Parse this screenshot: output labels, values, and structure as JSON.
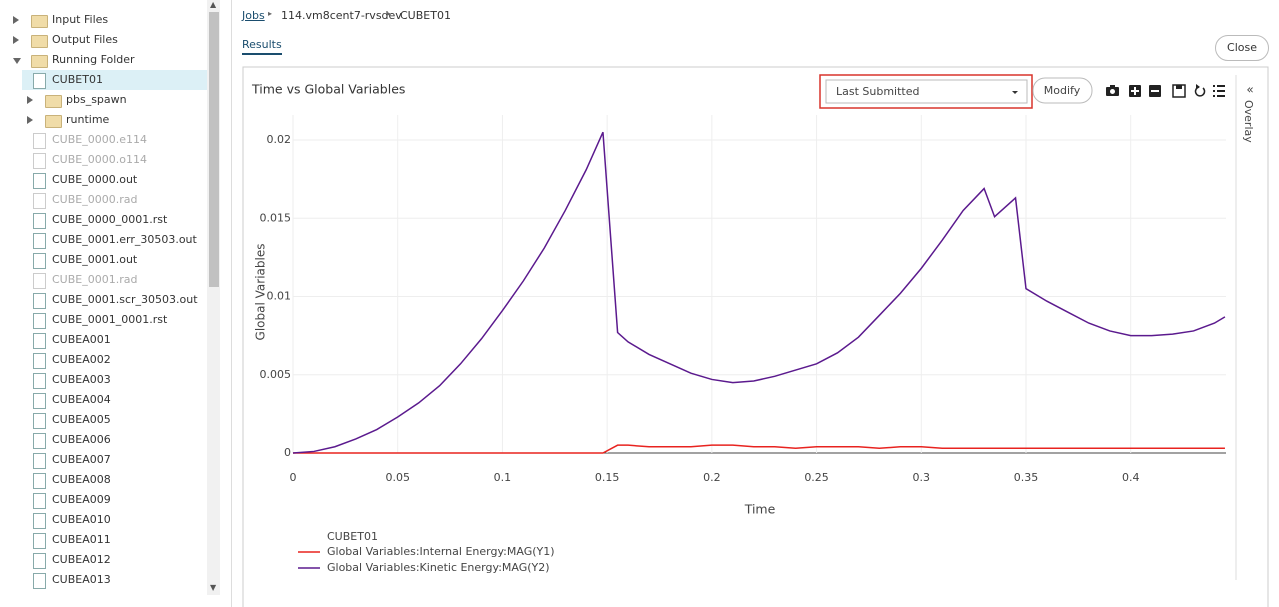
{
  "sidebar": {
    "items": [
      {
        "label": "Input Files",
        "icon": "folder",
        "depth": 0,
        "expander": "collapsed"
      },
      {
        "label": "Output Files",
        "icon": "folder",
        "depth": 0,
        "expander": "collapsed"
      },
      {
        "label": "Running Folder",
        "icon": "folder",
        "depth": 0,
        "expander": "expanded"
      },
      {
        "label": "CUBET01",
        "icon": "file",
        "depth": 1,
        "selected": true
      },
      {
        "label": "pbs_spawn",
        "icon": "folder",
        "depth": 1,
        "expander": "collapsed"
      },
      {
        "label": "runtime",
        "icon": "folder",
        "depth": 1,
        "expander": "collapsed"
      },
      {
        "label": "CUBE_0000.e114",
        "icon": "file",
        "depth": 1,
        "dimmed": true
      },
      {
        "label": "CUBE_0000.o114",
        "icon": "file",
        "depth": 1,
        "dimmed": true
      },
      {
        "label": "CUBE_0000.out",
        "icon": "file",
        "depth": 1
      },
      {
        "label": "CUBE_0000.rad",
        "icon": "file",
        "depth": 1,
        "dimmed": true
      },
      {
        "label": "CUBE_0000_0001.rst",
        "icon": "file",
        "depth": 1
      },
      {
        "label": "CUBE_0001.err_30503.out",
        "icon": "file",
        "depth": 1
      },
      {
        "label": "CUBE_0001.out",
        "icon": "file",
        "depth": 1
      },
      {
        "label": "CUBE_0001.rad",
        "icon": "file",
        "depth": 1,
        "dimmed": true
      },
      {
        "label": "CUBE_0001.scr_30503.out",
        "icon": "file",
        "depth": 1
      },
      {
        "label": "CUBE_0001_0001.rst",
        "icon": "file",
        "depth": 1
      },
      {
        "label": "CUBEA001",
        "icon": "file",
        "depth": 1
      },
      {
        "label": "CUBEA002",
        "icon": "file",
        "depth": 1
      },
      {
        "label": "CUBEA003",
        "icon": "file",
        "depth": 1
      },
      {
        "label": "CUBEA004",
        "icon": "file",
        "depth": 1
      },
      {
        "label": "CUBEA005",
        "icon": "file",
        "depth": 1
      },
      {
        "label": "CUBEA006",
        "icon": "file",
        "depth": 1
      },
      {
        "label": "CUBEA007",
        "icon": "file",
        "depth": 1
      },
      {
        "label": "CUBEA008",
        "icon": "file",
        "depth": 1
      },
      {
        "label": "CUBEA009",
        "icon": "file",
        "depth": 1
      },
      {
        "label": "CUBEA010",
        "icon": "file",
        "depth": 1
      },
      {
        "label": "CUBEA011",
        "icon": "file",
        "depth": 1
      },
      {
        "label": "CUBEA012",
        "icon": "file",
        "depth": 1
      },
      {
        "label": "CUBEA013",
        "icon": "file",
        "depth": 1
      }
    ]
  },
  "breadcrumb": [
    "Jobs",
    "114.vm8cent7-rvsdev",
    "CUBET01"
  ],
  "tab": "Results",
  "close_button": "Close",
  "toolbar": {
    "dropdown": "Last Submitted",
    "button": "Modify"
  },
  "side_panel": "Overlay",
  "chart_data": {
    "type": "line",
    "title": "Time vs Global Variables",
    "x_label": "Time",
    "y_label": "Global Variables",
    "legend_title": "CUBET01",
    "grid": true,
    "xlim": [
      0,
      0.4455
    ],
    "ylim": [
      0,
      0.0216
    ],
    "xticks": [
      0,
      0.05,
      0.1,
      0.15,
      0.2,
      0.25,
      0.3,
      0.35,
      0.4
    ],
    "yticks": [
      0,
      0.005,
      0.01,
      0.015,
      0.02
    ],
    "x": [
      0,
      0.01,
      0.02,
      0.03,
      0.04,
      0.05,
      0.06,
      0.07,
      0.08,
      0.09,
      0.1,
      0.11,
      0.12,
      0.13,
      0.14,
      0.148,
      0.155,
      0.16,
      0.17,
      0.18,
      0.19,
      0.2,
      0.21,
      0.22,
      0.23,
      0.24,
      0.25,
      0.26,
      0.27,
      0.28,
      0.29,
      0.3,
      0.31,
      0.32,
      0.33,
      0.335,
      0.345,
      0.35,
      0.36,
      0.37,
      0.38,
      0.39,
      0.4,
      0.41,
      0.42,
      0.43,
      0.44,
      0.445
    ],
    "series": [
      {
        "name": "Global Variables:Internal Energy:MAG(Y1)",
        "color": "#e8231f",
        "values": [
          0,
          0,
          0,
          0,
          0,
          0,
          0,
          0,
          0,
          0,
          0,
          0,
          0,
          0,
          0,
          0,
          0.0005,
          0.0005,
          0.0004,
          0.0004,
          0.0004,
          0.0005,
          0.0005,
          0.0004,
          0.0004,
          0.0003,
          0.0004,
          0.0004,
          0.0004,
          0.0003,
          0.0004,
          0.0004,
          0.0003,
          0.0003,
          0.0003,
          0.0003,
          0.0003,
          0.0003,
          0.0003,
          0.0003,
          0.0003,
          0.0003,
          0.0003,
          0.0003,
          0.0003,
          0.0003,
          0.0003,
          0.0003
        ]
      },
      {
        "name": "Global Variables:Kinetic Energy:MAG(Y2)",
        "color": "#5b1a8e",
        "values": [
          0,
          0.0001,
          0.0004,
          0.0009,
          0.0015,
          0.0023,
          0.0032,
          0.0043,
          0.0057,
          0.0073,
          0.0091,
          0.011,
          0.0131,
          0.0155,
          0.0181,
          0.0205,
          0.0077,
          0.0071,
          0.0063,
          0.0057,
          0.0051,
          0.0047,
          0.0045,
          0.0046,
          0.0049,
          0.0053,
          0.0057,
          0.0064,
          0.0074,
          0.0088,
          0.0102,
          0.0118,
          0.0136,
          0.0155,
          0.0169,
          0.0151,
          0.0163,
          0.0105,
          0.0097,
          0.009,
          0.0083,
          0.0078,
          0.0075,
          0.0075,
          0.0076,
          0.0078,
          0.0083,
          0.0087
        ]
      }
    ]
  }
}
